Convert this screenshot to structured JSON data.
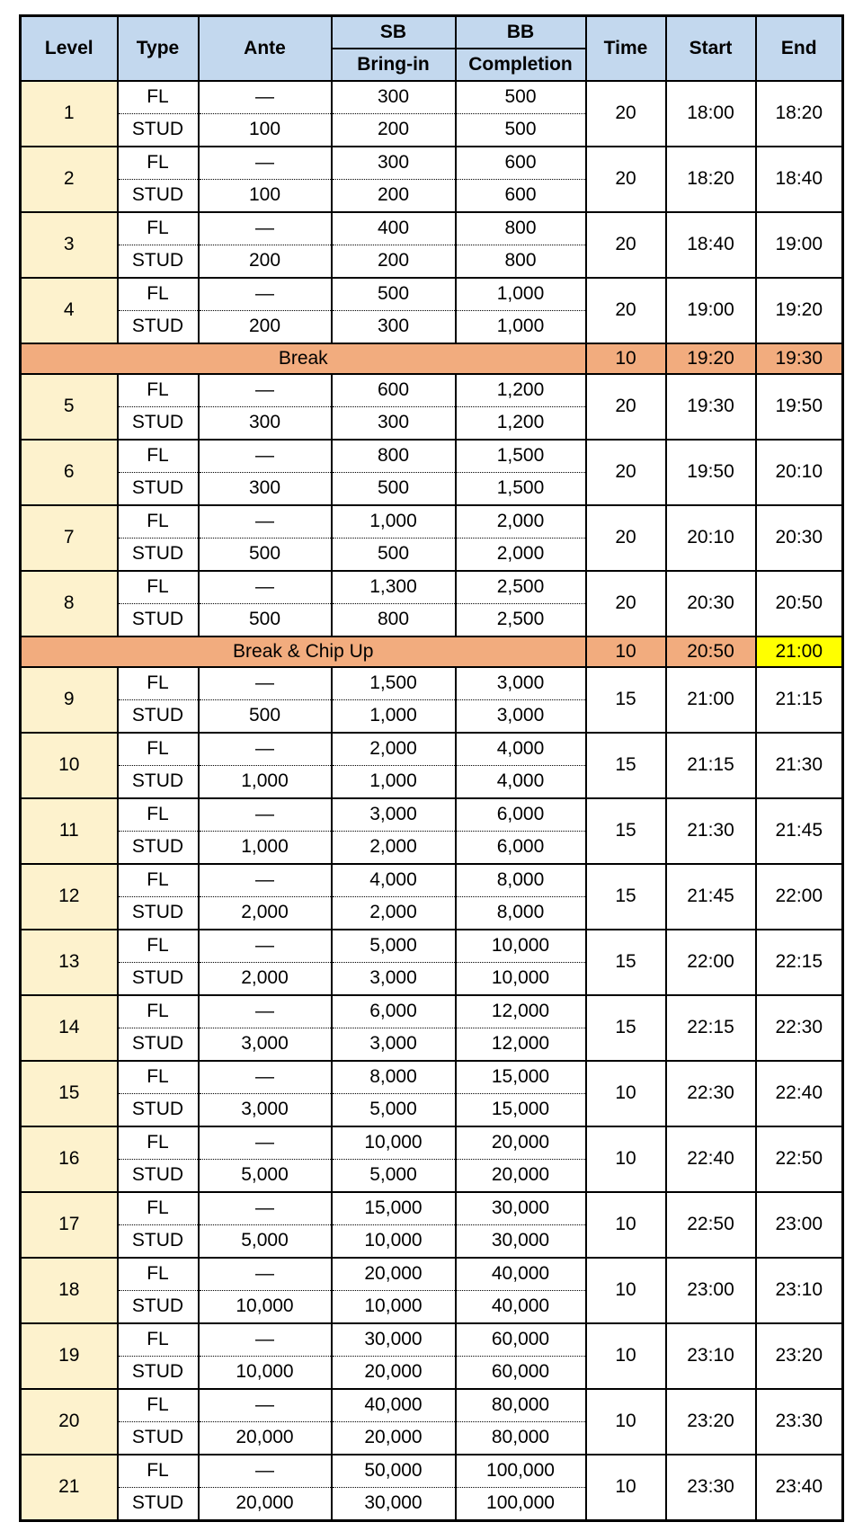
{
  "table": {
    "header": {
      "level": "Level",
      "type": "Type",
      "ante": "Ante",
      "sb": {
        "top": "SB",
        "bottom": "Bring-in"
      },
      "bb": {
        "top": "BB",
        "bottom": "Completion"
      },
      "time": "Time",
      "start": "Start",
      "end": "End"
    },
    "colors": {
      "header_bg": "#C3D8EE",
      "level_bg": "#FDF2CD",
      "break_bg": "#F2AC7E",
      "highlight_bg": "#FFFF00",
      "border": "#000000"
    },
    "rows": [
      {
        "kind": "level",
        "level": "1",
        "fl": {
          "type": "FL",
          "ante": "—",
          "sb": "300",
          "bb": "500"
        },
        "stud": {
          "type": "STUD",
          "ante": "100",
          "sb": "200",
          "bb": "500"
        },
        "time": "20",
        "start": "18:00",
        "end": "18:20"
      },
      {
        "kind": "level",
        "level": "2",
        "fl": {
          "type": "FL",
          "ante": "—",
          "sb": "300",
          "bb": "600"
        },
        "stud": {
          "type": "STUD",
          "ante": "100",
          "sb": "200",
          "bb": "600"
        },
        "time": "20",
        "start": "18:20",
        "end": "18:40"
      },
      {
        "kind": "level",
        "level": "3",
        "fl": {
          "type": "FL",
          "ante": "—",
          "sb": "400",
          "bb": "800"
        },
        "stud": {
          "type": "STUD",
          "ante": "200",
          "sb": "200",
          "bb": "800"
        },
        "time": "20",
        "start": "18:40",
        "end": "19:00"
      },
      {
        "kind": "level",
        "level": "4",
        "fl": {
          "type": "FL",
          "ante": "—",
          "sb": "500",
          "bb": "1,000"
        },
        "stud": {
          "type": "STUD",
          "ante": "200",
          "sb": "300",
          "bb": "1,000"
        },
        "time": "20",
        "start": "19:00",
        "end": "19:20"
      },
      {
        "kind": "break",
        "label": "Break",
        "time": "10",
        "start": "19:20",
        "end": "19:30",
        "end_highlight": false
      },
      {
        "kind": "level",
        "level": "5",
        "fl": {
          "type": "FL",
          "ante": "—",
          "sb": "600",
          "bb": "1,200"
        },
        "stud": {
          "type": "STUD",
          "ante": "300",
          "sb": "300",
          "bb": "1,200"
        },
        "time": "20",
        "start": "19:30",
        "end": "19:50"
      },
      {
        "kind": "level",
        "level": "6",
        "fl": {
          "type": "FL",
          "ante": "—",
          "sb": "800",
          "bb": "1,500"
        },
        "stud": {
          "type": "STUD",
          "ante": "300",
          "sb": "500",
          "bb": "1,500"
        },
        "time": "20",
        "start": "19:50",
        "end": "20:10"
      },
      {
        "kind": "level",
        "level": "7",
        "fl": {
          "type": "FL",
          "ante": "—",
          "sb": "1,000",
          "bb": "2,000"
        },
        "stud": {
          "type": "STUD",
          "ante": "500",
          "sb": "500",
          "bb": "2,000"
        },
        "time": "20",
        "start": "20:10",
        "end": "20:30"
      },
      {
        "kind": "level",
        "level": "8",
        "fl": {
          "type": "FL",
          "ante": "—",
          "sb": "1,300",
          "bb": "2,500"
        },
        "stud": {
          "type": "STUD",
          "ante": "500",
          "sb": "800",
          "bb": "2,500"
        },
        "time": "20",
        "start": "20:30",
        "end": "20:50"
      },
      {
        "kind": "break",
        "label": "Break & Chip Up",
        "time": "10",
        "start": "20:50",
        "end": "21:00",
        "end_highlight": true
      },
      {
        "kind": "level",
        "level": "9",
        "fl": {
          "type": "FL",
          "ante": "—",
          "sb": "1,500",
          "bb": "3,000"
        },
        "stud": {
          "type": "STUD",
          "ante": "500",
          "sb": "1,000",
          "bb": "3,000"
        },
        "time": "15",
        "start": "21:00",
        "end": "21:15"
      },
      {
        "kind": "level",
        "level": "10",
        "fl": {
          "type": "FL",
          "ante": "—",
          "sb": "2,000",
          "bb": "4,000"
        },
        "stud": {
          "type": "STUD",
          "ante": "1,000",
          "sb": "1,000",
          "bb": "4,000"
        },
        "time": "15",
        "start": "21:15",
        "end": "21:30"
      },
      {
        "kind": "level",
        "level": "11",
        "fl": {
          "type": "FL",
          "ante": "—",
          "sb": "3,000",
          "bb": "6,000"
        },
        "stud": {
          "type": "STUD",
          "ante": "1,000",
          "sb": "2,000",
          "bb": "6,000"
        },
        "time": "15",
        "start": "21:30",
        "end": "21:45"
      },
      {
        "kind": "level",
        "level": "12",
        "fl": {
          "type": "FL",
          "ante": "—",
          "sb": "4,000",
          "bb": "8,000"
        },
        "stud": {
          "type": "STUD",
          "ante": "2,000",
          "sb": "2,000",
          "bb": "8,000"
        },
        "time": "15",
        "start": "21:45",
        "end": "22:00"
      },
      {
        "kind": "level",
        "level": "13",
        "fl": {
          "type": "FL",
          "ante": "—",
          "sb": "5,000",
          "bb": "10,000"
        },
        "stud": {
          "type": "STUD",
          "ante": "2,000",
          "sb": "3,000",
          "bb": "10,000"
        },
        "time": "15",
        "start": "22:00",
        "end": "22:15"
      },
      {
        "kind": "level",
        "level": "14",
        "fl": {
          "type": "FL",
          "ante": "—",
          "sb": "6,000",
          "bb": "12,000"
        },
        "stud": {
          "type": "STUD",
          "ante": "3,000",
          "sb": "3,000",
          "bb": "12,000"
        },
        "time": "15",
        "start": "22:15",
        "end": "22:30"
      },
      {
        "kind": "level",
        "level": "15",
        "fl": {
          "type": "FL",
          "ante": "—",
          "sb": "8,000",
          "bb": "15,000"
        },
        "stud": {
          "type": "STUD",
          "ante": "3,000",
          "sb": "5,000",
          "bb": "15,000"
        },
        "time": "10",
        "start": "22:30",
        "end": "22:40"
      },
      {
        "kind": "level",
        "level": "16",
        "fl": {
          "type": "FL",
          "ante": "—",
          "sb": "10,000",
          "bb": "20,000"
        },
        "stud": {
          "type": "STUD",
          "ante": "5,000",
          "sb": "5,000",
          "bb": "20,000"
        },
        "time": "10",
        "start": "22:40",
        "end": "22:50"
      },
      {
        "kind": "level",
        "level": "17",
        "fl": {
          "type": "FL",
          "ante": "—",
          "sb": "15,000",
          "bb": "30,000"
        },
        "stud": {
          "type": "STUD",
          "ante": "5,000",
          "sb": "10,000",
          "bb": "30,000"
        },
        "time": "10",
        "start": "22:50",
        "end": "23:00"
      },
      {
        "kind": "level",
        "level": "18",
        "fl": {
          "type": "FL",
          "ante": "—",
          "sb": "20,000",
          "bb": "40,000"
        },
        "stud": {
          "type": "STUD",
          "ante": "10,000",
          "sb": "10,000",
          "bb": "40,000"
        },
        "time": "10",
        "start": "23:00",
        "end": "23:10"
      },
      {
        "kind": "level",
        "level": "19",
        "fl": {
          "type": "FL",
          "ante": "—",
          "sb": "30,000",
          "bb": "60,000"
        },
        "stud": {
          "type": "STUD",
          "ante": "10,000",
          "sb": "20,000",
          "bb": "60,000"
        },
        "time": "10",
        "start": "23:10",
        "end": "23:20"
      },
      {
        "kind": "level",
        "level": "20",
        "fl": {
          "type": "FL",
          "ante": "—",
          "sb": "40,000",
          "bb": "80,000"
        },
        "stud": {
          "type": "STUD",
          "ante": "20,000",
          "sb": "20,000",
          "bb": "80,000"
        },
        "time": "10",
        "start": "23:20",
        "end": "23:30"
      },
      {
        "kind": "level",
        "level": "21",
        "fl": {
          "type": "FL",
          "ante": "—",
          "sb": "50,000",
          "bb": "100,000"
        },
        "stud": {
          "type": "STUD",
          "ante": "20,000",
          "sb": "30,000",
          "bb": "100,000"
        },
        "time": "10",
        "start": "23:30",
        "end": "23:40"
      }
    ]
  }
}
